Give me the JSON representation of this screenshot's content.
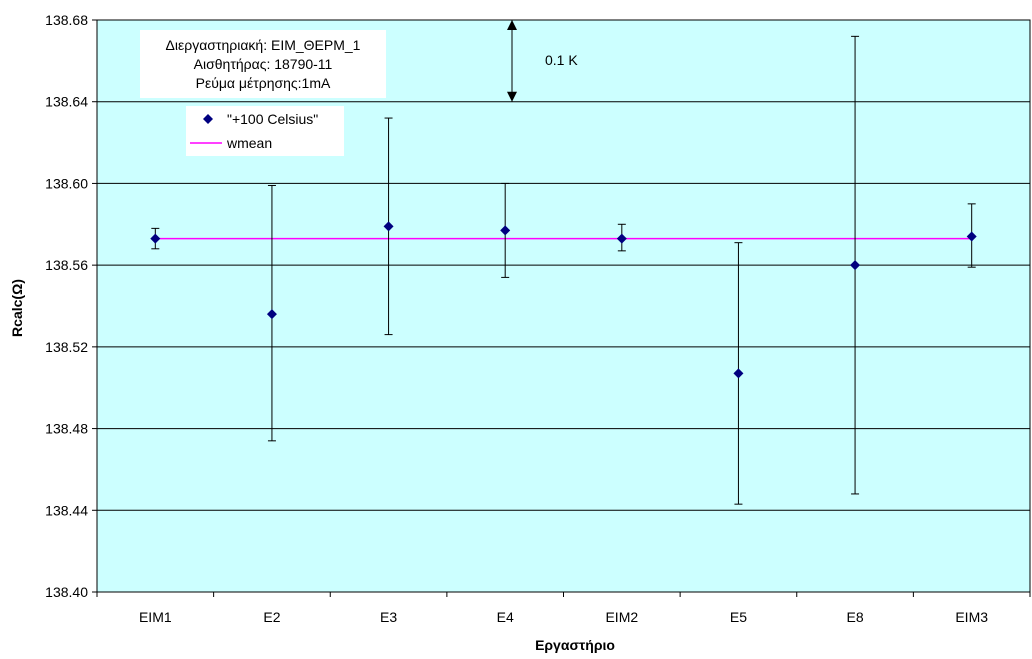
{
  "chart_data": {
    "type": "scatter",
    "categories": [
      "EIM1",
      "E2",
      "E3",
      "E4",
      "EIM2",
      "E5",
      "E8",
      "EIM3"
    ],
    "series": [
      {
        "name": "\"+100 Celsius\"",
        "values": [
          138.573,
          138.536,
          138.579,
          138.577,
          138.573,
          138.507,
          138.56,
          138.574
        ],
        "error_low": [
          138.568,
          138.474,
          138.526,
          138.554,
          138.567,
          138.443,
          138.448,
          138.559
        ],
        "error_high": [
          138.578,
          138.599,
          138.632,
          138.6,
          138.58,
          138.571,
          138.672,
          138.59
        ],
        "color": "#000080"
      },
      {
        "name": "wmean",
        "values": [
          138.573,
          138.573,
          138.573,
          138.573,
          138.573,
          138.573,
          138.573,
          138.573
        ],
        "color": "#ff00ff"
      }
    ],
    "xlabel": "Εργαστήριο",
    "ylabel": "Rcalc(Ω)",
    "ylim": [
      138.4,
      138.68
    ],
    "yticks": [
      "138.40",
      "138.44",
      "138.48",
      "138.52",
      "138.56",
      "138.60",
      "138.64",
      "138.68"
    ],
    "grid": true,
    "legend_position": "top-left",
    "plot_background": "#ccffff",
    "info_lines": [
      "Διεργαστηριακή: ΕΙΜ_ΘΕΡΜ_1",
      "Αισθητήρας: 18790-11",
      "Ρεύμα μέτρησης:1mA"
    ],
    "scale_annotation": {
      "label": "0.1 K",
      "from": 138.68,
      "to": 138.64
    }
  }
}
